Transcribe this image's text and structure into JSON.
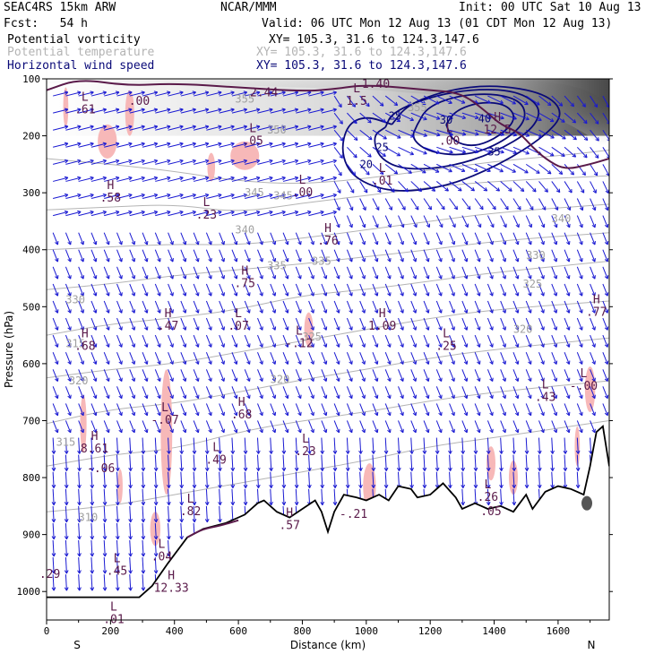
{
  "header": {
    "model": "SEAC4RS 15km ARW",
    "org": "NCAR/MMM",
    "init": "Init: 00 UTC Sat 10 Aug 13",
    "fcst": "Fcst:   54 h",
    "valid": "Valid: 06 UTC Mon 12 Aug 13 (01 CDT Mon 12 Aug 13)",
    "fields": [
      {
        "name": "Potential vorticity",
        "xy": "XY= 105.3, 31.6 to 124.3,147.6",
        "color": "#000000"
      },
      {
        "name": "Potential temperature",
        "xy": "XY= 105.3, 31.6 to 124.3,147.6",
        "color": "#b4b4b4"
      },
      {
        "name": "Horizontal wind speed",
        "xy": "XY= 105.3, 31.6 to 124.3,147.6",
        "color": "#0a0a78"
      }
    ]
  },
  "chart_data": {
    "type": "cross-section",
    "xlabel": "Distance (km)",
    "ylabel": "Pressure (hPa)",
    "xlim": [
      0,
      1760
    ],
    "ylim": [
      1050,
      100
    ],
    "x_ticks": [
      0,
      200,
      400,
      600,
      800,
      1000,
      1200,
      1400,
      1600
    ],
    "y_ticks": [
      100,
      200,
      300,
      400,
      500,
      600,
      700,
      800,
      900,
      1000
    ],
    "endpoint_labels": [
      "S",
      "N"
    ],
    "terrain": [
      [
        0,
        1010
      ],
      [
        290,
        1010
      ],
      [
        330,
        990
      ],
      [
        380,
        950
      ],
      [
        440,
        905
      ],
      [
        490,
        890
      ],
      [
        560,
        880
      ],
      [
        620,
        865
      ],
      [
        660,
        845
      ],
      [
        680,
        840
      ],
      [
        720,
        860
      ],
      [
        760,
        870
      ],
      [
        800,
        855
      ],
      [
        840,
        840
      ],
      [
        860,
        860
      ],
      [
        880,
        895
      ],
      [
        900,
        860
      ],
      [
        930,
        830
      ],
      [
        970,
        835
      ],
      [
        1000,
        840
      ],
      [
        1040,
        830
      ],
      [
        1070,
        840
      ],
      [
        1100,
        815
      ],
      [
        1140,
        820
      ],
      [
        1160,
        835
      ],
      [
        1200,
        830
      ],
      [
        1240,
        810
      ],
      [
        1280,
        835
      ],
      [
        1300,
        855
      ],
      [
        1320,
        850
      ],
      [
        1340,
        845
      ],
      [
        1360,
        850
      ],
      [
        1380,
        855
      ],
      [
        1420,
        850
      ],
      [
        1460,
        860
      ],
      [
        1500,
        830
      ],
      [
        1520,
        855
      ],
      [
        1560,
        825
      ],
      [
        1600,
        815
      ],
      [
        1640,
        820
      ],
      [
        1680,
        830
      ],
      [
        1700,
        780
      ],
      [
        1720,
        720
      ],
      [
        1740,
        710
      ],
      [
        1760,
        780
      ]
    ],
    "theta_labels": [
      {
        "text": "355",
        "x": 620,
        "p": 135
      },
      {
        "text": "355",
        "x": 1160,
        "p": 150
      },
      {
        "text": "350",
        "x": 720,
        "p": 190
      },
      {
        "text": "345",
        "x": 650,
        "p": 300
      },
      {
        "text": "345",
        "x": 740,
        "p": 305
      },
      {
        "text": "340",
        "x": 620,
        "p": 365
      },
      {
        "text": "340",
        "x": 1610,
        "p": 345
      },
      {
        "text": "335",
        "x": 860,
        "p": 420
      },
      {
        "text": "335",
        "x": 720,
        "p": 428
      },
      {
        "text": "330",
        "x": 90,
        "p": 488
      },
      {
        "text": "330",
        "x": 1530,
        "p": 410
      },
      {
        "text": "325",
        "x": 830,
        "p": 553
      },
      {
        "text": "325",
        "x": 1520,
        "p": 460
      },
      {
        "text": "320",
        "x": 1490,
        "p": 540
      },
      {
        "text": "320",
        "x": 730,
        "p": 628
      },
      {
        "text": "320",
        "x": 100,
        "p": 630
      },
      {
        "text": "315",
        "x": 90,
        "p": 565
      },
      {
        "text": "315",
        "x": 60,
        "p": 738
      },
      {
        "text": "310",
        "x": 130,
        "p": 870
      }
    ],
    "theta_lines": [
      [
        [
          0,
          240
        ],
        [
          200,
          250
        ],
        [
          400,
          262
        ],
        [
          600,
          280
        ],
        [
          800,
          285
        ],
        [
          1000,
          275
        ],
        [
          1200,
          260
        ],
        [
          1400,
          245
        ],
        [
          1600,
          235
        ],
        [
          1760,
          225
        ]
      ],
      [
        [
          0,
          330
        ],
        [
          200,
          325
        ],
        [
          400,
          320
        ],
        [
          600,
          335
        ],
        [
          800,
          318
        ],
        [
          1000,
          305
        ],
        [
          1200,
          290
        ],
        [
          1400,
          280
        ],
        [
          1760,
          270
        ]
      ],
      [
        [
          0,
          400
        ],
        [
          200,
          395
        ],
        [
          400,
          390
        ],
        [
          600,
          392
        ],
        [
          800,
          380
        ],
        [
          1000,
          365
        ],
        [
          1200,
          350
        ],
        [
          1400,
          335
        ],
        [
          1760,
          320
        ]
      ],
      [
        [
          0,
          470
        ],
        [
          200,
          460
        ],
        [
          400,
          445
        ],
        [
          600,
          435
        ],
        [
          800,
          425
        ],
        [
          1000,
          412
        ],
        [
          1200,
          400
        ],
        [
          1400,
          385
        ],
        [
          1760,
          370
        ]
      ],
      [
        [
          0,
          550
        ],
        [
          200,
          530
        ],
        [
          400,
          520
        ],
        [
          600,
          505
        ],
        [
          800,
          480
        ],
        [
          1000,
          470
        ],
        [
          1200,
          455
        ],
        [
          1400,
          440
        ],
        [
          1760,
          420
        ]
      ],
      [
        [
          0,
          625
        ],
        [
          200,
          610
        ],
        [
          400,
          600
        ],
        [
          600,
          580
        ],
        [
          800,
          560
        ],
        [
          1000,
          540
        ],
        [
          1200,
          520
        ],
        [
          1400,
          505
        ],
        [
          1760,
          490
        ]
      ],
      [
        [
          0,
          705
        ],
        [
          200,
          680
        ],
        [
          400,
          670
        ],
        [
          600,
          650
        ],
        [
          800,
          628
        ],
        [
          1000,
          610
        ],
        [
          1200,
          590
        ],
        [
          1400,
          575
        ],
        [
          1760,
          555
        ]
      ],
      [
        [
          0,
          780
        ],
        [
          200,
          760
        ],
        [
          400,
          750
        ],
        [
          600,
          720
        ],
        [
          800,
          700
        ],
        [
          1000,
          685
        ],
        [
          1200,
          665
        ],
        [
          1400,
          650
        ],
        [
          1760,
          630
        ]
      ],
      [
        [
          0,
          860
        ],
        [
          200,
          850
        ],
        [
          400,
          830
        ],
        [
          600,
          810
        ],
        [
          800,
          790
        ],
        [
          1000,
          770
        ],
        [
          1200,
          745
        ],
        [
          1400,
          730
        ],
        [
          1760,
          700
        ]
      ]
    ],
    "wind_speed_contours": [
      {
        "label": "20",
        "points": [
          [
            1080,
            180
          ],
          [
            1000,
            165
          ],
          [
            940,
            180
          ],
          [
            920,
            230
          ],
          [
            960,
            275
          ],
          [
            1080,
            300
          ],
          [
            1250,
            290
          ],
          [
            1420,
            250
          ],
          [
            1560,
            200
          ],
          [
            1620,
            160
          ],
          [
            1560,
            125
          ],
          [
            1400,
            110
          ],
          [
            1250,
            120
          ],
          [
            1130,
            145
          ],
          [
            1080,
            180
          ]
        ]
      },
      {
        "label": "25",
        "points": [
          [
            1060,
            185
          ],
          [
            1020,
            200
          ],
          [
            1040,
            240
          ],
          [
            1120,
            260
          ],
          [
            1260,
            255
          ],
          [
            1400,
            230
          ],
          [
            1520,
            190
          ],
          [
            1550,
            150
          ],
          [
            1470,
            120
          ],
          [
            1320,
            118
          ],
          [
            1180,
            135
          ],
          [
            1080,
            160
          ],
          [
            1060,
            185
          ]
        ]
      },
      {
        "label": "30",
        "points": [
          [
            1160,
            180
          ],
          [
            1140,
            205
          ],
          [
            1200,
            230
          ],
          [
            1320,
            235
          ],
          [
            1430,
            210
          ],
          [
            1500,
            175
          ],
          [
            1490,
            140
          ],
          [
            1400,
            125
          ],
          [
            1280,
            130
          ],
          [
            1190,
            150
          ],
          [
            1160,
            180
          ]
        ]
      },
      {
        "label": "35",
        "points": [
          [
            1250,
            180
          ],
          [
            1270,
            210
          ],
          [
            1340,
            220
          ],
          [
            1420,
            200
          ],
          [
            1470,
            170
          ],
          [
            1440,
            145
          ],
          [
            1360,
            140
          ],
          [
            1280,
            155
          ],
          [
            1250,
            180
          ]
        ]
      }
    ],
    "wind_speed_labels": [
      {
        "text": "20",
        "x": 1000,
        "p": 250
      },
      {
        "text": "25",
        "x": 1050,
        "p": 220
      },
      {
        "text": "25",
        "x": 1090,
        "p": 165
      },
      {
        "text": "30",
        "x": 1250,
        "p": 172
      },
      {
        "text": "35",
        "x": 1400,
        "p": 228
      },
      {
        "text": "40",
        "x": 1370,
        "p": 170
      }
    ],
    "pv_positive_regions": [
      {
        "cx": 60,
        "p": 150,
        "rx": 8,
        "rp": 35
      },
      {
        "cx": 190,
        "p": 210,
        "rx": 30,
        "rp": 30
      },
      {
        "cx": 260,
        "p": 160,
        "rx": 14,
        "rp": 40
      },
      {
        "cx": 515,
        "p": 255,
        "rx": 12,
        "rp": 25
      },
      {
        "cx": 620,
        "p": 235,
        "rx": 45,
        "rp": 25
      },
      {
        "cx": 820,
        "p": 540,
        "rx": 14,
        "rp": 30
      },
      {
        "cx": 115,
        "p": 705,
        "rx": 10,
        "rp": 50
      },
      {
        "cx": 375,
        "p": 720,
        "rx": 18,
        "rp": 110
      },
      {
        "cx": 230,
        "p": 815,
        "rx": 8,
        "rp": 30
      },
      {
        "cx": 340,
        "p": 890,
        "rx": 16,
        "rp": 30
      },
      {
        "cx": 1010,
        "p": 815,
        "rx": 20,
        "rp": 40
      },
      {
        "cx": 1390,
        "p": 775,
        "rx": 14,
        "rp": 30
      },
      {
        "cx": 1460,
        "p": 800,
        "rx": 14,
        "rp": 30
      },
      {
        "cx": 1700,
        "p": 645,
        "rx": 16,
        "rp": 40
      },
      {
        "cx": 1660,
        "p": 745,
        "rx": 8,
        "rp": 35
      }
    ],
    "pv_extrema": [
      {
        "type": "L",
        "value": ".61",
        "x": 120,
        "p": 145
      },
      {
        "type": "",
        "value": ".00",
        "x": 290,
        "p": 130
      },
      {
        "type": "",
        "value": "2.44",
        "x": 680,
        "p": 115
      },
      {
        "type": "",
        "value": "1.40",
        "x": 1030,
        "p": 100
      },
      {
        "type": "L",
        "value": "1.5",
        "x": 970,
        "p": 130
      },
      {
        "type": "L",
        "value": ".05",
        "x": 645,
        "p": 200
      },
      {
        "type": "L",
        "value": ".00",
        "x": 800,
        "p": 290
      },
      {
        "type": "L",
        "value": ".01",
        "x": 1050,
        "p": 270
      },
      {
        "type": "L",
        "value": ".00",
        "x": 1260,
        "p": 200
      },
      {
        "type": "H",
        "value": "12.5",
        "x": 1410,
        "p": 180
      },
      {
        "type": "H",
        "value": ".58",
        "x": 200,
        "p": 300
      },
      {
        "type": "L",
        "value": ".23",
        "x": 500,
        "p": 330
      },
      {
        "type": "H",
        "value": ".76",
        "x": 880,
        "p": 375
      },
      {
        "type": "H",
        "value": ".75",
        "x": 620,
        "p": 450
      },
      {
        "type": "H",
        "value": ".68",
        "x": 120,
        "p": 560
      },
      {
        "type": "H",
        "value": ".47",
        "x": 380,
        "p": 525
      },
      {
        "type": "L",
        "value": ".07",
        "x": 600,
        "p": 525
      },
      {
        "type": "L",
        "value": "-.12",
        "x": 790,
        "p": 555
      },
      {
        "type": "H",
        "value": "1.09",
        "x": 1050,
        "p": 525
      },
      {
        "type": "L",
        "value": ".25",
        "x": 1250,
        "p": 560
      },
      {
        "type": "H",
        "value": ".77",
        "x": 1720,
        "p": 500
      },
      {
        "type": "L",
        "value": ".43",
        "x": 1560,
        "p": 650
      },
      {
        "type": "L",
        "value": "-.00",
        "x": 1680,
        "p": 630
      },
      {
        "type": "L",
        "value": "-.07",
        "x": 370,
        "p": 690
      },
      {
        "type": "H",
        "value": ".68",
        "x": 610,
        "p": 680
      },
      {
        "type": "H",
        "value": "8.61",
        "x": 150,
        "p": 740
      },
      {
        "type": "",
        "value": "-.06",
        "x": 170,
        "p": 775
      },
      {
        "type": "L",
        "value": ".49",
        "x": 530,
        "p": 760
      },
      {
        "type": "L",
        "value": ".23",
        "x": 810,
        "p": 745
      },
      {
        "type": "L",
        "value": ".82",
        "x": 450,
        "p": 850
      },
      {
        "type": "L",
        "value": ".26",
        "x": 1380,
        "p": 825
      },
      {
        "type": "",
        "value": ".05",
        "x": 1390,
        "p": 850
      },
      {
        "type": "",
        "value": "-.21",
        "x": 960,
        "p": 855
      },
      {
        "type": "H",
        "value": ".57",
        "x": 760,
        "p": 875
      },
      {
        "type": "L",
        "value": ".04",
        "x": 360,
        "p": 930
      },
      {
        "type": "L",
        "value": ".45",
        "x": 220,
        "p": 955
      },
      {
        "type": "H",
        "value": "12.33",
        "x": 390,
        "p": 985
      },
      {
        "type": "",
        "value": ".29",
        "x": 10,
        "p": 960
      },
      {
        "type": "L",
        "value": ".01",
        "x": 210,
        "p": 1040
      }
    ]
  }
}
